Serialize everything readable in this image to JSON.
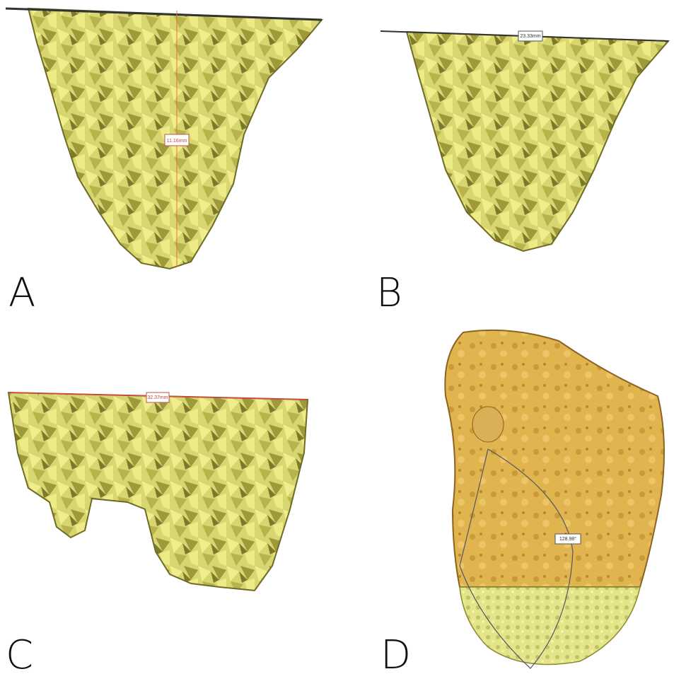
{
  "panels": [
    {
      "label": "A",
      "measurement": "11.16mm"
    },
    {
      "label": "B",
      "measurement": "23.33mm"
    },
    {
      "label": "C",
      "measurement": "32.37mm"
    },
    {
      "label": "D",
      "measurement": "128.98°"
    }
  ]
}
